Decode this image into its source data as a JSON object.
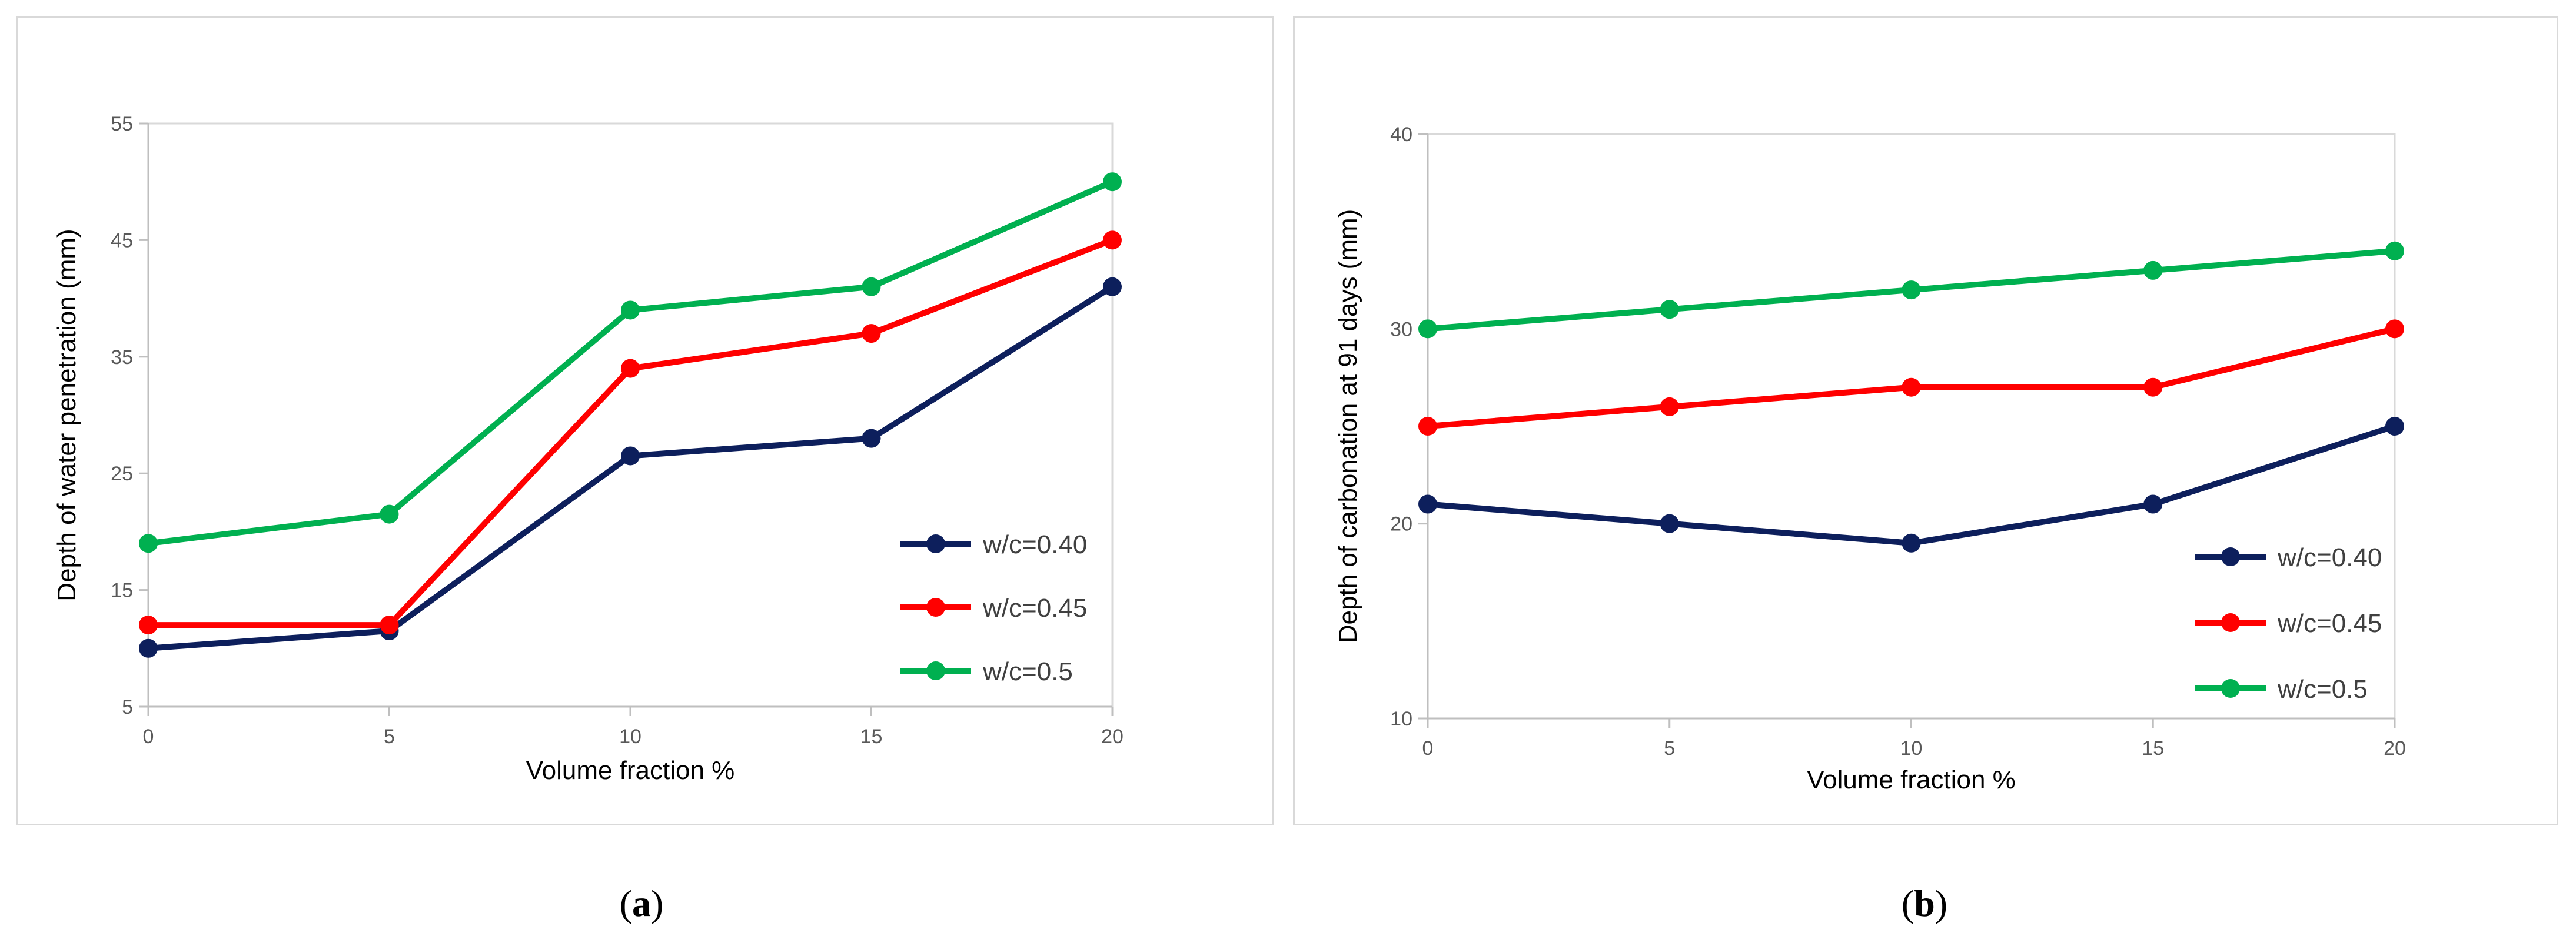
{
  "chart_data": [
    {
      "id": "a",
      "type": "line",
      "title": "",
      "xlabel": "Volume fraction %",
      "ylabel": "Depth of water penetration (mm)",
      "x": [
        0,
        5,
        10,
        15,
        20
      ],
      "x_ticks": [
        "0",
        "5",
        "10",
        "15",
        "20"
      ],
      "ylim": [
        5,
        55
      ],
      "y_ticks": [
        "5",
        "15",
        "25",
        "35",
        "45",
        "55"
      ],
      "y_tick_values": [
        5,
        15,
        25,
        35,
        45,
        55
      ],
      "grid": false,
      "legend_position": "right",
      "series": [
        {
          "name": "w/c=0.40",
          "color": "#0d1f5c",
          "values": [
            10,
            11.5,
            26.5,
            28,
            41
          ]
        },
        {
          "name": "w/c=0.45",
          "color": "#ff0000",
          "values": [
            12,
            12,
            34,
            37,
            45
          ]
        },
        {
          "name": "w/c=0.5",
          "color": "#00b050",
          "values": [
            19,
            21.5,
            39,
            41,
            50
          ]
        }
      ],
      "caption_letter": "a"
    },
    {
      "id": "b",
      "type": "line",
      "title": "",
      "xlabel": "Volume fraction %",
      "ylabel": "Depth of carbonation at 91 days (mm)",
      "x": [
        0,
        5,
        10,
        15,
        20
      ],
      "x_ticks": [
        "0",
        "5",
        "10",
        "15",
        "20"
      ],
      "ylim": [
        10,
        40
      ],
      "y_ticks": [
        "10",
        "20",
        "30",
        "40"
      ],
      "y_tick_values": [
        10,
        20,
        30,
        40
      ],
      "grid": false,
      "legend_position": "right",
      "series": [
        {
          "name": "w/c=0.40",
          "color": "#0d1f5c",
          "values": [
            21,
            20,
            19,
            21,
            25
          ]
        },
        {
          "name": "w/c=0.45",
          "color": "#ff0000",
          "values": [
            25,
            26,
            27,
            27,
            30
          ]
        },
        {
          "name": "w/c=0.5",
          "color": "#00b050",
          "values": [
            30,
            31,
            32,
            33,
            34
          ]
        }
      ],
      "caption_letter": "b"
    }
  ],
  "captions": {
    "a": {
      "open": "(",
      "letter": "a",
      "close": ")"
    },
    "b": {
      "open": "(",
      "letter": "b",
      "close": ")"
    }
  }
}
